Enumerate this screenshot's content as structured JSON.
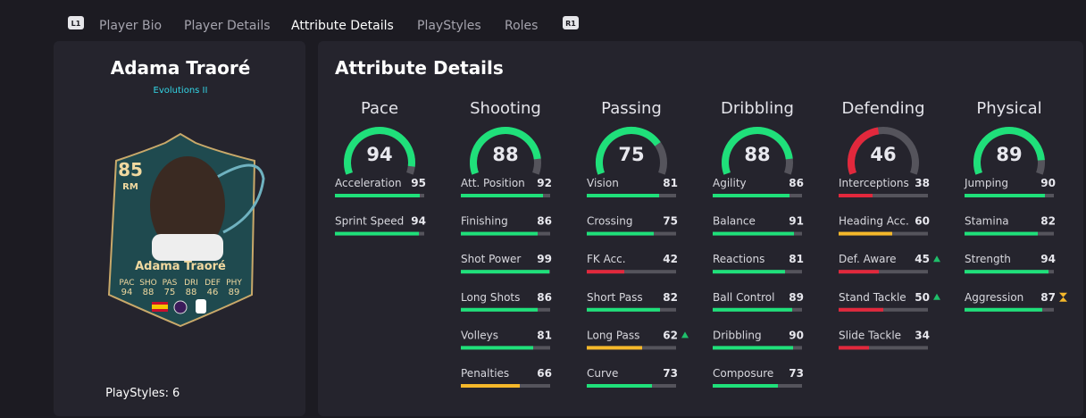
{
  "nav": {
    "left_button": "L1",
    "tabs": [
      "Player Bio",
      "Player Details",
      "Attribute Details",
      "PlayStyles",
      "Roles"
    ],
    "right_button": "R1"
  },
  "player": {
    "name": "Adama Traoré",
    "subtitle": "Evolutions II"
  },
  "card": {
    "rating": 85,
    "position": "RM",
    "name": "Adama Traoré",
    "stats": [
      {
        "label": "PAC",
        "value": 94
      },
      {
        "label": "SHO",
        "value": 88
      },
      {
        "label": "PAS",
        "value": 75
      },
      {
        "label": "DRI",
        "value": 88
      },
      {
        "label": "DEF",
        "value": 46
      },
      {
        "label": "PHY",
        "value": 89
      }
    ]
  },
  "playstyles": {
    "label": "PlayStyles:",
    "count": 6
  },
  "panel": {
    "title": "Attribute Details"
  },
  "groups": [
    {
      "name": "Pace",
      "rating": 94,
      "attributes": [
        {
          "name": "Acceleration",
          "value": 95
        },
        {
          "name": "Sprint Speed",
          "value": 94
        }
      ]
    },
    {
      "name": "Shooting",
      "rating": 88,
      "attributes": [
        {
          "name": "Att. Position",
          "value": 92
        },
        {
          "name": "Finishing",
          "value": 86
        },
        {
          "name": "Shot Power",
          "value": 99
        },
        {
          "name": "Long Shots",
          "value": 86
        },
        {
          "name": "Volleys",
          "value": 81
        },
        {
          "name": "Penalties",
          "value": 66
        }
      ]
    },
    {
      "name": "Passing",
      "rating": 75,
      "attributes": [
        {
          "name": "Vision",
          "value": 81
        },
        {
          "name": "Crossing",
          "value": 75
        },
        {
          "name": "FK Acc.",
          "value": 42
        },
        {
          "name": "Short Pass",
          "value": 82
        },
        {
          "name": "Long Pass",
          "value": 62,
          "marker": "up"
        },
        {
          "name": "Curve",
          "value": 73
        }
      ]
    },
    {
      "name": "Dribbling",
      "rating": 88,
      "attributes": [
        {
          "name": "Agility",
          "value": 86
        },
        {
          "name": "Balance",
          "value": 91
        },
        {
          "name": "Reactions",
          "value": 81
        },
        {
          "name": "Ball Control",
          "value": 89
        },
        {
          "name": "Dribbling",
          "value": 90
        },
        {
          "name": "Composure",
          "value": 73
        }
      ]
    },
    {
      "name": "Defending",
      "rating": 46,
      "attributes": [
        {
          "name": "Interceptions",
          "value": 38
        },
        {
          "name": "Heading Acc.",
          "value": 60
        },
        {
          "name": "Def. Aware",
          "value": 45,
          "marker": "up"
        },
        {
          "name": "Stand Tackle",
          "value": 50,
          "marker": "up"
        },
        {
          "name": "Slide Tackle",
          "value": 34
        }
      ]
    },
    {
      "name": "Physical",
      "rating": 89,
      "attributes": [
        {
          "name": "Jumping",
          "value": 90
        },
        {
          "name": "Stamina",
          "value": 82
        },
        {
          "name": "Strength",
          "value": 94
        },
        {
          "name": "Aggression",
          "value": 87,
          "marker": "boost"
        }
      ]
    }
  ]
}
